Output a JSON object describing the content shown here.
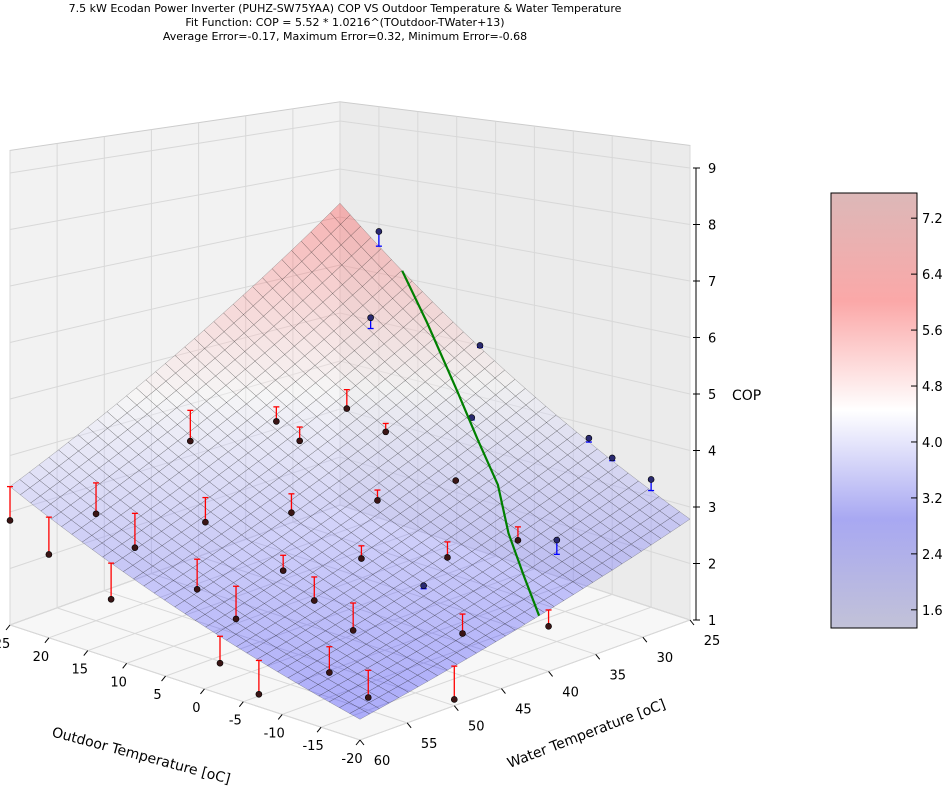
{
  "chart_data": {
    "type": "scatter",
    "title": "7.5 kW Ecodan Power Inverter (PUHZ-SW75YAA) COP VS Outdoor Temperature & Water Temperature",
    "subtitle": "Fit Function: COP = 5.52 * 1.0216^(TOutdoor-TWater+13)",
    "stats": "Average Error=-0.17, Maximum Error=0.32, Minimum Error=-0.68",
    "xlabel": "Outdoor Temperature [oC]",
    "ylabel": "Water Temperature [oC]",
    "zlabel": "COP",
    "xlim": [
      25,
      -20
    ],
    "ylim": [
      25,
      60
    ],
    "zlim": [
      1,
      9
    ],
    "x_ticks": [
      "25",
      "20",
      "15",
      "10",
      "5",
      "0",
      "-5",
      "-10",
      "-15",
      "-20"
    ],
    "y_ticks": [
      "60",
      "55",
      "50",
      "45",
      "40",
      "35",
      "30",
      "25"
    ],
    "z_ticks": [
      "1",
      "2",
      "3",
      "4",
      "5",
      "6",
      "7",
      "8",
      "9"
    ],
    "fit": {
      "a": 5.52,
      "b": 1.0216,
      "offset": 13
    },
    "surface_colormap": "bwr",
    "colorbar": {
      "range": [
        1.34,
        7.56
      ],
      "ticks": [
        "1.6",
        "2.4",
        "3.2",
        "4.0",
        "4.8",
        "5.6",
        "6.4",
        "7.2"
      ]
    },
    "error_colors": {
      "below_fit": "#ff0000",
      "above_fit": "#0000ff"
    },
    "limit_line_color": "#008000",
    "limit_line": [
      [
        17,
        25
      ],
      [
        12,
        26.5
      ],
      [
        5,
        29
      ],
      [
        0,
        31
      ],
      [
        -5,
        33
      ],
      [
        -10,
        36
      ],
      [
        -15,
        38.5
      ],
      [
        -20,
        41
      ]
    ],
    "points": [
      [
        20,
        25,
        6.85
      ],
      [
        15,
        30,
        5.5
      ],
      [
        7,
        25,
        5.0
      ],
      [
        12,
        35,
        4.1
      ],
      [
        20,
        45,
        3.7
      ],
      [
        2,
        30,
        4.05
      ],
      [
        -7,
        25,
        3.75
      ],
      [
        -15,
        25,
        3.3
      ],
      [
        -10,
        35,
        2.55
      ],
      [
        7,
        45,
        2.9
      ],
      [
        12,
        50,
        2.8
      ],
      [
        20,
        55,
        2.9
      ],
      [
        25,
        60,
        2.85
      ],
      [
        15,
        55,
        2.5
      ],
      [
        2,
        40,
        3.05
      ],
      [
        -2,
        35,
        3.3
      ],
      [
        -7,
        40,
        2.4
      ],
      [
        -15,
        35,
        2.75
      ],
      [
        -10,
        45,
        2.3
      ],
      [
        -15,
        45,
        1.7
      ],
      [
        -20,
        50,
        1.1
      ],
      [
        -15,
        55,
        1.2
      ],
      [
        -10,
        55,
        1.4
      ],
      [
        -7,
        50,
        1.7
      ],
      [
        -2,
        50,
        2.0
      ],
      [
        2,
        55,
        1.8
      ],
      [
        7,
        55,
        2.1
      ],
      [
        12,
        60,
        2.0
      ],
      [
        20,
        60,
        2.45
      ],
      [
        -2,
        60,
        1.5
      ],
      [
        -7,
        60,
        1.2
      ],
      [
        -20,
        40,
        1.75
      ],
      [
        7,
        35,
        3.85
      ],
      [
        12,
        40,
        3.75
      ],
      [
        -2,
        45,
        2.45
      ],
      [
        2,
        50,
        2.35
      ],
      [
        15,
        40,
        4.0
      ],
      [
        -10,
        25,
        3.5
      ]
    ]
  }
}
